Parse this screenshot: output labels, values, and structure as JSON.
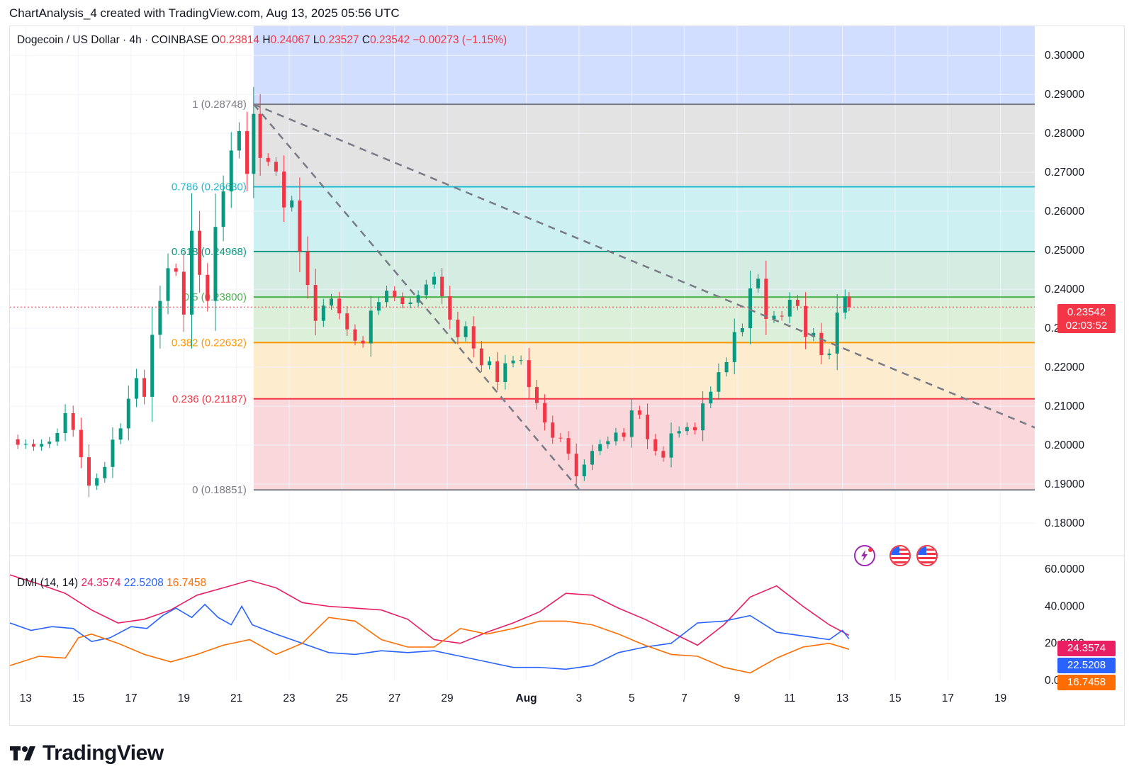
{
  "caption": "ChartAnalysis_4 created with TradingView.com, Aug 13, 2025 05:56 UTC",
  "legend": {
    "symbol": "Dogecoin / US Dollar · 4h · COINBASE",
    "o_label": "O",
    "o": "0.23814",
    "h_label": "H",
    "h": "0.24067",
    "l_label": "L",
    "l": "0.23527",
    "c_label": "C",
    "c": "0.23542",
    "change": "−0.00273 (−1.15%)"
  },
  "price_tag": {
    "price": "0.23542",
    "countdown": "02:03:52"
  },
  "brand": "TradingView",
  "colors": {
    "up": "#089981",
    "down": "#f23645",
    "adx": "#e91e63",
    "di_plus": "#2962ff",
    "di_minus": "#ff6d00"
  },
  "chart_data": [
    {
      "type": "candlestick",
      "title": "Dogecoin / US Dollar · 4h · COINBASE",
      "y_axis": {
        "range": [
          0.172,
          0.3075
        ],
        "ticks": [
          "0.30000",
          "0.29000",
          "0.28000",
          "0.27000",
          "0.26000",
          "0.25000",
          "0.24000",
          "0.23000",
          "0.22000",
          "0.21000",
          "0.20000",
          "0.19000",
          "0.18000"
        ]
      },
      "x_axis": {
        "ticks": [
          "13",
          "15",
          "17",
          "19",
          "21",
          "23",
          "25",
          "27",
          "29",
          "Aug",
          "3",
          "5",
          "7",
          "9",
          "11",
          "13",
          "15",
          "17",
          "19"
        ],
        "tick_days": [
          13,
          15,
          17,
          19,
          21,
          23,
          25,
          27,
          29,
          32,
          34,
          36,
          38,
          40,
          42,
          44,
          46,
          48,
          50
        ],
        "day_numbering": "days from Jul 1 (Aug 1 = 32)",
        "range_days": [
          12.4,
          51.3
        ]
      },
      "fib_levels": [
        {
          "ratio": 1,
          "label": "1 (0.28748)",
          "price": 0.28748,
          "color": "#787b86"
        },
        {
          "ratio": 0.786,
          "label": "0.786 (0.26630)",
          "price": 0.2663,
          "color": "#22b8cf"
        },
        {
          "ratio": 0.618,
          "label": "0.618 (0.24968)",
          "price": 0.24968,
          "color": "#089981"
        },
        {
          "ratio": 0.5,
          "label": "0.5 (0.23800)",
          "price": 0.238,
          "color": "#4caf50"
        },
        {
          "ratio": 0.382,
          "label": "0.382 (0.22632)",
          "price": 0.22632,
          "color": "#ff9800"
        },
        {
          "ratio": 0.236,
          "label": "0.236 (0.21187)",
          "price": 0.21187,
          "color": "#f23645"
        },
        {
          "ratio": 0,
          "label": "0 (0.18851)",
          "price": 0.18851,
          "color": "#787b86"
        }
      ],
      "fib_zones": [
        {
          "from": 0.28748,
          "to": 0.3075,
          "color": "#d1deff"
        },
        {
          "from": 0.2663,
          "to": 0.28748,
          "color": "#e3e3e3"
        },
        {
          "from": 0.24968,
          "to": 0.2663,
          "color": "#cdf0f3"
        },
        {
          "from": 0.238,
          "to": 0.24968,
          "color": "#d4ece2"
        },
        {
          "from": 0.22632,
          "to": 0.238,
          "color": "#dcefd9"
        },
        {
          "from": 0.21187,
          "to": 0.22632,
          "color": "#fdeccd"
        },
        {
          "from": 0.18851,
          "to": 0.21187,
          "color": "#f9d7da"
        }
      ],
      "fib_x_range_days": [
        21.65,
        51.3
      ],
      "trendlines": [
        {
          "style": "dashed",
          "from": {
            "day": 21.65,
            "price": 0.28748
          },
          "to": {
            "day": 51.3,
            "price": 0.2045
          }
        },
        {
          "style": "dashed",
          "from": {
            "day": 21.65,
            "price": 0.28748
          },
          "to": {
            "day": 34.0,
            "price": 0.1887
          }
        }
      ],
      "last_price": 0.23542,
      "closes": [
        [
          12.4,
          0.2015
        ],
        [
          12.7,
          0.2001
        ],
        [
          13.0,
          0.2003
        ],
        [
          13.3,
          0.1996
        ],
        [
          13.6,
          0.2003
        ],
        [
          13.9,
          0.2009
        ],
        [
          14.2,
          0.2031
        ],
        [
          14.5,
          0.2082
        ],
        [
          14.8,
          0.2039
        ],
        [
          15.1,
          0.1969
        ],
        [
          15.4,
          0.1896
        ],
        [
          15.7,
          0.1915
        ],
        [
          16.0,
          0.1944
        ],
        [
          16.3,
          0.2014
        ],
        [
          16.6,
          0.2043
        ],
        [
          16.9,
          0.2119
        ],
        [
          17.2,
          0.2172
        ],
        [
          17.5,
          0.2124
        ],
        [
          17.8,
          0.2283
        ],
        [
          18.1,
          0.237
        ],
        [
          18.4,
          0.2454
        ],
        [
          18.7,
          0.2445
        ],
        [
          19.0,
          0.2335
        ],
        [
          19.3,
          0.255
        ],
        [
          19.6,
          0.2437
        ],
        [
          19.9,
          0.237
        ],
        [
          20.2,
          0.256
        ],
        [
          20.5,
          0.2651
        ],
        [
          20.8,
          0.2756
        ],
        [
          21.1,
          0.2806
        ],
        [
          21.4,
          0.2696
        ],
        [
          21.65,
          0.285
        ],
        [
          21.9,
          0.2737
        ],
        [
          22.2,
          0.2727
        ],
        [
          22.5,
          0.2702
        ],
        [
          22.8,
          0.261
        ],
        [
          23.1,
          0.2628
        ],
        [
          23.4,
          0.2497
        ],
        [
          23.7,
          0.2411
        ],
        [
          24.0,
          0.2319
        ],
        [
          24.3,
          0.2358
        ],
        [
          24.6,
          0.2376
        ],
        [
          24.9,
          0.2338
        ],
        [
          25.2,
          0.2297
        ],
        [
          25.5,
          0.2268
        ],
        [
          25.8,
          0.2261
        ],
        [
          26.1,
          0.2345
        ],
        [
          26.4,
          0.2367
        ],
        [
          26.7,
          0.2396
        ],
        [
          27.0,
          0.238
        ],
        [
          27.3,
          0.2362
        ],
        [
          27.6,
          0.2366
        ],
        [
          27.9,
          0.2385
        ],
        [
          28.2,
          0.2412
        ],
        [
          28.5,
          0.2432
        ],
        [
          28.8,
          0.2382
        ],
        [
          29.1,
          0.2322
        ],
        [
          29.4,
          0.2277
        ],
        [
          29.7,
          0.2305
        ],
        [
          30.0,
          0.2248
        ],
        [
          30.3,
          0.2205
        ],
        [
          30.6,
          0.2215
        ],
        [
          30.9,
          0.2162
        ],
        [
          31.2,
          0.221
        ],
        [
          31.5,
          0.2217
        ],
        [
          31.8,
          0.2218
        ],
        [
          32.1,
          0.2149
        ],
        [
          32.4,
          0.2108
        ],
        [
          32.7,
          0.2058
        ],
        [
          33.0,
          0.2019
        ],
        [
          33.3,
          0.2018
        ],
        [
          33.6,
          0.1978
        ],
        [
          33.9,
          0.192
        ],
        [
          34.2,
          0.195
        ],
        [
          34.5,
          0.1985
        ],
        [
          34.8,
          0.2002
        ],
        [
          35.1,
          0.201
        ],
        [
          35.4,
          0.2032
        ],
        [
          35.7,
          0.2021
        ],
        [
          36.0,
          0.2089
        ],
        [
          36.3,
          0.2078
        ],
        [
          36.6,
          0.2015
        ],
        [
          36.9,
          0.1985
        ],
        [
          37.2,
          0.1968
        ],
        [
          37.5,
          0.203
        ],
        [
          37.8,
          0.2036
        ],
        [
          38.1,
          0.2046
        ],
        [
          38.4,
          0.2038
        ],
        [
          38.7,
          0.2107
        ],
        [
          39.0,
          0.2137
        ],
        [
          39.3,
          0.2187
        ],
        [
          39.6,
          0.2213
        ],
        [
          39.9,
          0.229
        ],
        [
          40.2,
          0.23
        ],
        [
          40.5,
          0.2402
        ],
        [
          40.8,
          0.2427
        ],
        [
          41.1,
          0.2324
        ],
        [
          41.4,
          0.2332
        ],
        [
          41.7,
          0.233
        ],
        [
          42.0,
          0.2373
        ],
        [
          42.3,
          0.2357
        ],
        [
          42.6,
          0.2278
        ],
        [
          42.9,
          0.2288
        ],
        [
          43.2,
          0.2231
        ],
        [
          43.5,
          0.2235
        ],
        [
          43.8,
          0.234
        ],
        [
          44.1,
          0.2381
        ],
        [
          44.25,
          0.23542
        ]
      ]
    },
    {
      "type": "line",
      "title": "DMI (14, 14)",
      "y_axis": {
        "range": [
          0,
          64.3
        ],
        "ticks": [
          "60.0000",
          "40.0000",
          "20.0000",
          "0.0000"
        ]
      },
      "series": [
        {
          "name": "ADX",
          "value_label": "24.3574",
          "color": "#e91e63",
          "points": [
            [
              12.4,
              57
            ],
            [
              13.5,
              52
            ],
            [
              14.5,
              47
            ],
            [
              15.5,
              38
            ],
            [
              16.5,
              31
            ],
            [
              17.5,
              33
            ],
            [
              18.5,
              38
            ],
            [
              19.5,
              46
            ],
            [
              20.5,
              50
            ],
            [
              21.5,
              54
            ],
            [
              22.5,
              50
            ],
            [
              23.5,
              42
            ],
            [
              24.5,
              40
            ],
            [
              25.5,
              39
            ],
            [
              26.5,
              38
            ],
            [
              27.5,
              33
            ],
            [
              28.5,
              22
            ],
            [
              29.5,
              20
            ],
            [
              30.5,
              26
            ],
            [
              31.5,
              31
            ],
            [
              32.5,
              37
            ],
            [
              33.5,
              47
            ],
            [
              34.5,
              46
            ],
            [
              35.5,
              39
            ],
            [
              36.5,
              33
            ],
            [
              37.5,
              26
            ],
            [
              38.5,
              19
            ],
            [
              39.5,
              30
            ],
            [
              40.5,
              45
            ],
            [
              41.5,
              51
            ],
            [
              42.5,
              40
            ],
            [
              43.5,
              30
            ],
            [
              44.25,
              24.3574
            ]
          ]
        },
        {
          "name": "+DI",
          "value_label": "22.5208",
          "color": "#2962ff",
          "points": [
            [
              12.4,
              31
            ],
            [
              13.2,
              27
            ],
            [
              14.0,
              29
            ],
            [
              14.8,
              28
            ],
            [
              15.5,
              21
            ],
            [
              16.2,
              23
            ],
            [
              17.0,
              29
            ],
            [
              17.6,
              28
            ],
            [
              18.2,
              35
            ],
            [
              18.7,
              39
            ],
            [
              19.3,
              34
            ],
            [
              19.8,
              41
            ],
            [
              20.3,
              34
            ],
            [
              20.8,
              30
            ],
            [
              21.2,
              40
            ],
            [
              21.6,
              30
            ],
            [
              22.5,
              25
            ],
            [
              23.5,
              20
            ],
            [
              24.5,
              15
            ],
            [
              25.5,
              14
            ],
            [
              26.5,
              16
            ],
            [
              27.5,
              15
            ],
            [
              28.5,
              16
            ],
            [
              29.5,
              13
            ],
            [
              30.5,
              10
            ],
            [
              31.5,
              7
            ],
            [
              32.5,
              7
            ],
            [
              33.5,
              6
            ],
            [
              34.5,
              8
            ],
            [
              35.5,
              15
            ],
            [
              36.5,
              18
            ],
            [
              37.5,
              20
            ],
            [
              38.5,
              31
            ],
            [
              39.5,
              32
            ],
            [
              40.5,
              35
            ],
            [
              41.5,
              26
            ],
            [
              42.5,
              24
            ],
            [
              43.5,
              22
            ],
            [
              44.0,
              27
            ],
            [
              44.25,
              22.5208
            ]
          ]
        },
        {
          "name": "−DI",
          "value_label": "16.7458",
          "color": "#ff6d00",
          "points": [
            [
              12.4,
              8
            ],
            [
              13.5,
              13
            ],
            [
              14.5,
              12
            ],
            [
              15.0,
              23
            ],
            [
              15.5,
              25
            ],
            [
              16.5,
              20
            ],
            [
              17.5,
              14
            ],
            [
              18.5,
              10
            ],
            [
              19.5,
              14
            ],
            [
              20.5,
              19
            ],
            [
              21.5,
              22
            ],
            [
              22.5,
              14
            ],
            [
              23.5,
              20
            ],
            [
              24.5,
              34
            ],
            [
              25.5,
              32
            ],
            [
              26.5,
              22
            ],
            [
              27.5,
              18
            ],
            [
              28.5,
              18
            ],
            [
              29.5,
              28
            ],
            [
              30.5,
              25
            ],
            [
              31.5,
              28
            ],
            [
              32.5,
              32
            ],
            [
              33.5,
              32
            ],
            [
              34.5,
              30
            ],
            [
              35.5,
              25
            ],
            [
              36.5,
              19
            ],
            [
              37.5,
              14
            ],
            [
              38.5,
              13
            ],
            [
              39.5,
              7
            ],
            [
              40.5,
              4
            ],
            [
              41.5,
              12
            ],
            [
              42.5,
              18
            ],
            [
              43.5,
              20
            ],
            [
              44.25,
              16.7458
            ]
          ]
        }
      ]
    }
  ]
}
